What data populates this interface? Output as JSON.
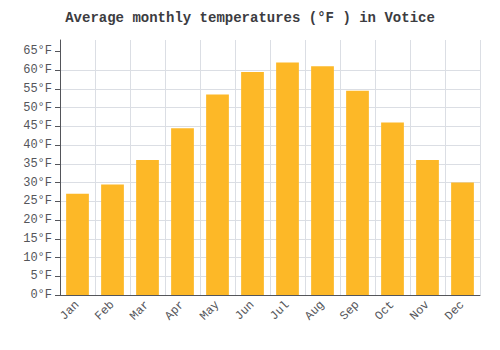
{
  "chart_data": {
    "type": "bar",
    "title": "Average monthly temperatures (°F ) in Votice",
    "categories": [
      "Jan",
      "Feb",
      "Mar",
      "Apr",
      "May",
      "Jun",
      "Jul",
      "Aug",
      "Sep",
      "Oct",
      "Nov",
      "Dec"
    ],
    "values": [
      27,
      29.5,
      36,
      44.5,
      53.5,
      59.5,
      62,
      61,
      54.5,
      46,
      36,
      30
    ],
    "color": "#FDB827",
    "ylim": [
      0,
      68
    ],
    "yticks": [
      {
        "value": 0,
        "label": "0°F"
      },
      {
        "value": 5,
        "label": "5°F"
      },
      {
        "value": 10,
        "label": "10°F"
      },
      {
        "value": 15,
        "label": "15°F"
      },
      {
        "value": 20,
        "label": "20°F"
      },
      {
        "value": 25,
        "label": "25°F"
      },
      {
        "value": 30,
        "label": "30°F"
      },
      {
        "value": 35,
        "label": "35°F"
      },
      {
        "value": 40,
        "label": "40°F"
      },
      {
        "value": 45,
        "label": "45°F"
      },
      {
        "value": 50,
        "label": "50°F"
      },
      {
        "value": 55,
        "label": "55°F"
      },
      {
        "value": 60,
        "label": "60°F"
      },
      {
        "value": 65,
        "label": "65°F"
      }
    ],
    "grid": true
  }
}
